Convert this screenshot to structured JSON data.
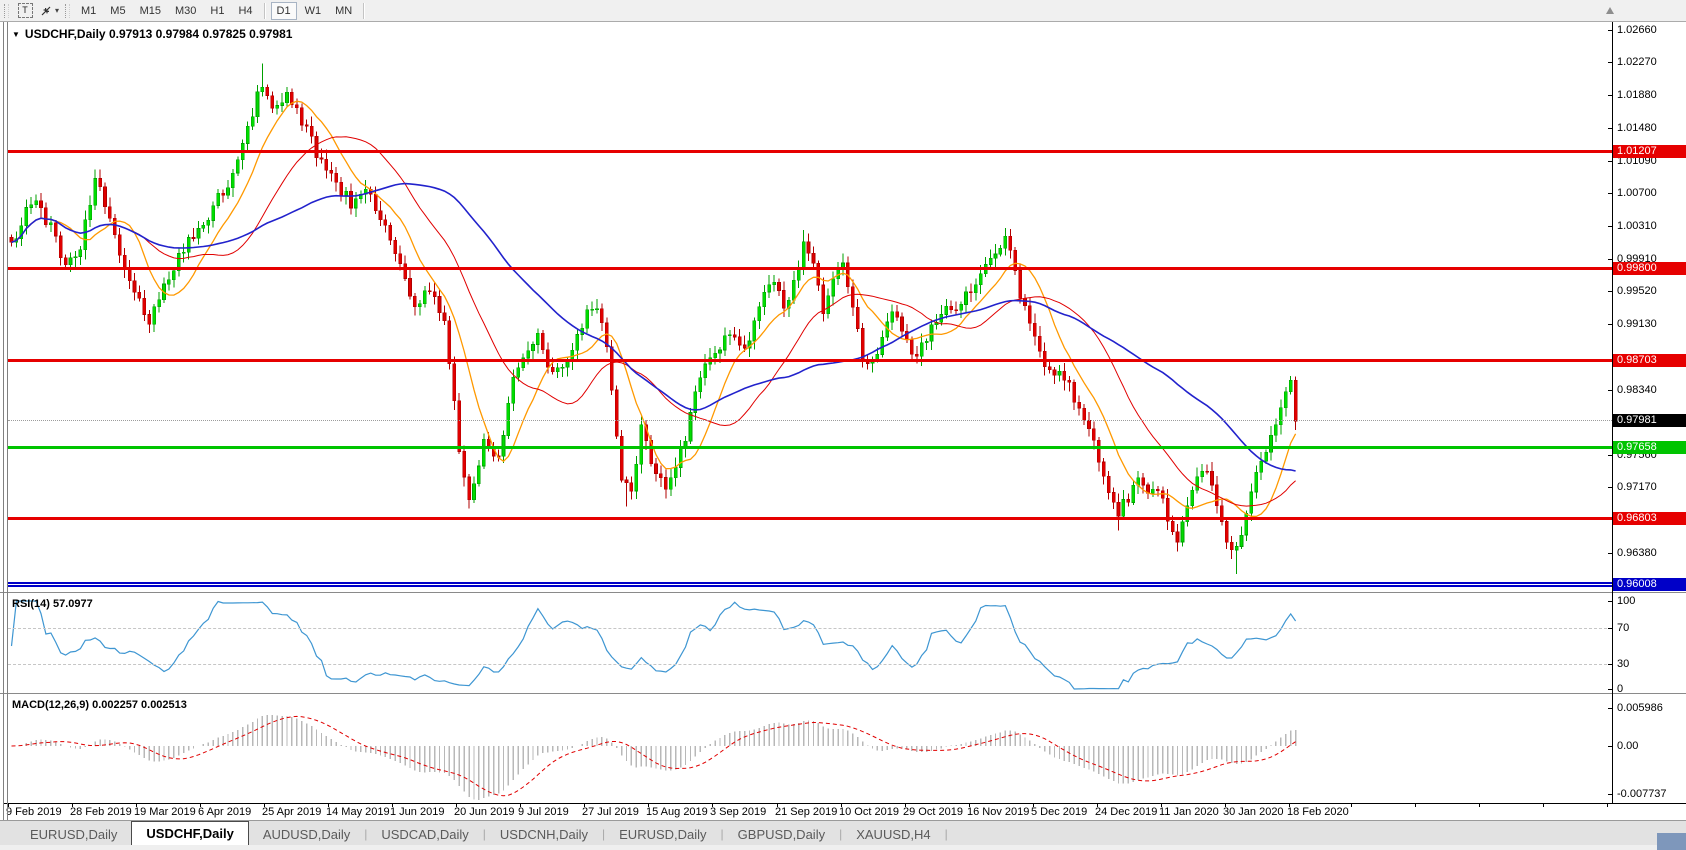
{
  "toolbar": {
    "text_tool_label": "T",
    "cursor_tool_icon": "double-arrow-icon",
    "timeframes": [
      "M1",
      "M5",
      "M15",
      "M30",
      "H1",
      "H4",
      "D1",
      "W1",
      "MN"
    ],
    "active_timeframe": "D1"
  },
  "chart": {
    "title_text": "USDCHF,Daily  0.97913 0.97984 0.97825 0.97981",
    "symbol": "USDCHF",
    "period": "Daily",
    "ohlc": {
      "open": "0.97913",
      "high": "0.97984",
      "low": "0.97825",
      "close": "0.97981"
    }
  },
  "price_axis": {
    "ticks": [
      [
        "1.02660",
        30
      ],
      [
        "1.02270",
        62
      ],
      [
        "1.01880",
        95
      ],
      [
        "1.01480",
        128
      ],
      [
        "1.01090",
        161
      ],
      [
        "1.00700",
        193
      ],
      [
        "1.00310",
        226
      ],
      [
        "0.99910",
        259
      ],
      [
        "0.99520",
        291
      ],
      [
        "0.99130",
        324
      ],
      [
        "0.98340",
        390
      ],
      [
        "0.97560",
        455
      ],
      [
        "0.97170",
        487
      ],
      [
        "0.96380",
        553
      ]
    ]
  },
  "levels": [
    {
      "label": "1.01207",
      "price": 1.01207,
      "color": "#E60000",
      "thickness": 3
    },
    {
      "label": "0.99800",
      "price": 0.998,
      "color": "#E60000",
      "thickness": 3
    },
    {
      "label": "0.98703",
      "price": 0.98703,
      "color": "#E60000",
      "thickness": 3
    },
    {
      "label": "0.97658",
      "price": 0.97658,
      "color": "#00C400",
      "thickness": 3
    },
    {
      "label": "0.96803",
      "price": 0.96803,
      "color": "#E60000",
      "thickness": 3
    },
    {
      "label": "0.96008",
      "price": 0.96008,
      "color": "#0000C8",
      "thickness": 5
    }
  ],
  "current_price": {
    "label": "0.97981",
    "price": 0.97981
  },
  "indicators": {
    "rsi": {
      "label": "RSI(14) 57.0977",
      "period": 14,
      "value": 57.0977,
      "scale": [
        [
          "100",
          601
        ],
        [
          "70",
          628
        ],
        [
          "30",
          664
        ],
        [
          "0",
          689
        ]
      ],
      "dashed_levels": [
        [
          "70",
          628
        ],
        [
          "30",
          664
        ]
      ]
    },
    "macd": {
      "label": "MACD(12,26,9) 0.002257 0.002513",
      "fast": 12,
      "slow": 26,
      "signal": 9,
      "macd_value": 0.002257,
      "signal_value": 0.002513,
      "scale": [
        [
          "0.005986",
          708
        ],
        [
          "0.00",
          746
        ],
        [
          "-0.007737",
          794
        ]
      ]
    }
  },
  "date_axis": [
    [
      "9 Feb 2019",
      6
    ],
    [
      "28 Feb 2019",
      70
    ],
    [
      "19 Mar 2019",
      134
    ],
    [
      "6 Apr 2019",
      198
    ],
    [
      "25 Apr 2019",
      262
    ],
    [
      "14 May 2019",
      326
    ],
    [
      "1 Jun 2019",
      390
    ],
    [
      "20 Jun 2019",
      454
    ],
    [
      "9 Jul 2019",
      518
    ],
    [
      "27 Jul 2019",
      582
    ],
    [
      "15 Aug 2019",
      646
    ],
    [
      "3 Sep 2019",
      710
    ],
    [
      "21 Sep 2019",
      775
    ],
    [
      "10 Oct 2019",
      839
    ],
    [
      "29 Oct 2019",
      903
    ],
    [
      "16 Nov 2019",
      967
    ],
    [
      "5 Dec 2019",
      1031
    ],
    [
      "24 Dec 2019",
      1095
    ],
    [
      "11 Jan 2020",
      1159
    ],
    [
      "30 Jan 2020",
      1223
    ],
    [
      "18 Feb 2020",
      1287
    ]
  ],
  "tabs": [
    {
      "label": "EURUSD,Daily",
      "active": false
    },
    {
      "label": "USDCHF,Daily",
      "active": true
    },
    {
      "label": "AUDUSD,Daily",
      "active": false
    },
    {
      "label": "USDCAD,Daily",
      "active": false
    },
    {
      "label": "USDCNH,Daily",
      "active": false
    },
    {
      "label": "EURUSD,Daily",
      "active": false
    },
    {
      "label": "GBPUSD,Daily",
      "active": false
    },
    {
      "label": "XAUUSD,H4",
      "active": false
    }
  ],
  "colors": {
    "bull": "#00DC00",
    "bull_border": "#00A000",
    "bear": "#E00000",
    "bear_border": "#B00000",
    "ma_fast": "#FF9900",
    "ma_mid": "#E00000",
    "ma_slow": "#2222CC",
    "rsi": "#3E96D2",
    "macd_hist": "#B8B8B8",
    "macd_signal": "#E00000",
    "level_red": "#E60000",
    "level_green": "#00C400",
    "level_blue": "#0000C8"
  },
  "chart_data": {
    "type": "candlestick",
    "symbol": "USDCHF",
    "timeframe": "Daily",
    "visible_price_min": 0.96,
    "visible_price_max": 1.0266,
    "date_start": "9 Feb 2019",
    "date_end": "18 Feb 2020",
    "candle_count": 262,
    "price_path_anchors": [
      [
        0,
        1.0008
      ],
      [
        4,
        1.0062
      ],
      [
        8,
        1.003
      ],
      [
        11,
        0.9985
      ],
      [
        14,
        1.0
      ],
      [
        17,
        1.0092
      ],
      [
        20,
        1.004
      ],
      [
        24,
        0.996
      ],
      [
        28,
        0.9918
      ],
      [
        31,
        0.9955
      ],
      [
        35,
        1.0005
      ],
      [
        40,
        1.004
      ],
      [
        45,
        1.0095
      ],
      [
        48,
        1.015
      ],
      [
        51,
        1.0205
      ],
      [
        53,
        1.017
      ],
      [
        56,
        1.019
      ],
      [
        59,
        1.0155
      ],
      [
        62,
        1.012
      ],
      [
        65,
        1.0095
      ],
      [
        69,
        1.0055
      ],
      [
        72,
        1.008
      ],
      [
        78,
        1.0
      ],
      [
        82,
        0.9935
      ],
      [
        85,
        0.9952
      ],
      [
        88,
        0.9915
      ],
      [
        91,
        0.9762
      ],
      [
        93,
        0.9706
      ],
      [
        96,
        0.9772
      ],
      [
        99,
        0.9748
      ],
      [
        102,
        0.9845
      ],
      [
        105,
        0.9885
      ],
      [
        107,
        0.9896
      ],
      [
        110,
        0.9852
      ],
      [
        113,
        0.9872
      ],
      [
        116,
        0.9908
      ],
      [
        118,
        0.9938
      ],
      [
        120,
        0.992
      ],
      [
        122,
        0.984
      ],
      [
        124,
        0.9718
      ],
      [
        126,
        0.9714
      ],
      [
        128,
        0.9786
      ],
      [
        130,
        0.9752
      ],
      [
        133,
        0.9714
      ],
      [
        135,
        0.9736
      ],
      [
        138,
        0.98
      ],
      [
        140,
        0.9848
      ],
      [
        143,
        0.9876
      ],
      [
        146,
        0.9904
      ],
      [
        149,
        0.9882
      ],
      [
        152,
        0.9934
      ],
      [
        155,
        0.9962
      ],
      [
        157,
        0.9932
      ],
      [
        159,
        0.9962
      ],
      [
        161,
        1.0006
      ],
      [
        163,
        0.9982
      ],
      [
        165,
        0.9932
      ],
      [
        167,
        0.9962
      ],
      [
        169,
        0.9982
      ],
      [
        171,
        0.9932
      ],
      [
        173,
        0.9874
      ],
      [
        175,
        0.9862
      ],
      [
        177,
        0.9904
      ],
      [
        180,
        0.9928
      ],
      [
        182,
        0.9892
      ],
      [
        184,
        0.9874
      ],
      [
        187,
        0.9908
      ],
      [
        189,
        0.9932
      ],
      [
        192,
        0.9936
      ],
      [
        195,
        0.9956
      ],
      [
        198,
        0.9984
      ],
      [
        200,
        1.0002
      ],
      [
        202,
        1.0016
      ],
      [
        204,
        0.9972
      ],
      [
        206,
        0.9932
      ],
      [
        208,
        0.9892
      ],
      [
        210,
        0.9868
      ],
      [
        213,
        0.9852
      ],
      [
        215,
        0.9838
      ],
      [
        217,
        0.9812
      ],
      [
        219,
        0.9788
      ],
      [
        221,
        0.9752
      ],
      [
        223,
        0.9714
      ],
      [
        225,
        0.9684
      ],
      [
        227,
        0.9706
      ],
      [
        229,
        0.9732
      ],
      [
        231,
        0.9716
      ],
      [
        233,
        0.9714
      ],
      [
        235,
        0.9678
      ],
      [
        237,
        0.9648
      ],
      [
        239,
        0.9692
      ],
      [
        241,
        0.9732
      ],
      [
        243,
        0.974
      ],
      [
        245,
        0.97
      ],
      [
        247,
        0.965
      ],
      [
        249,
        0.9642
      ],
      [
        251,
        0.9686
      ],
      [
        253,
        0.9732
      ],
      [
        255,
        0.9762
      ],
      [
        257,
        0.9792
      ],
      [
        259,
        0.9824
      ],
      [
        260,
        0.9844
      ],
      [
        261,
        0.9798
      ]
    ],
    "extremes": {
      "51": {
        "high": 1.0226
      },
      "93": {
        "low": 0.9695
      },
      "125": {
        "low": 0.9694
      },
      "161": {
        "high": 1.0026
      },
      "202": {
        "high": 1.0028
      },
      "225": {
        "low": 0.9665
      },
      "237": {
        "low": 0.964
      },
      "249": {
        "low": 0.9613
      },
      "260": {
        "high": 0.985
      }
    },
    "moving_averages": [
      {
        "name": "fast",
        "period": 10,
        "color": "#FF9900"
      },
      {
        "name": "medium",
        "period": 25,
        "color": "#E00000"
      },
      {
        "name": "slow",
        "period": 50,
        "color": "#2222CC"
      }
    ]
  }
}
